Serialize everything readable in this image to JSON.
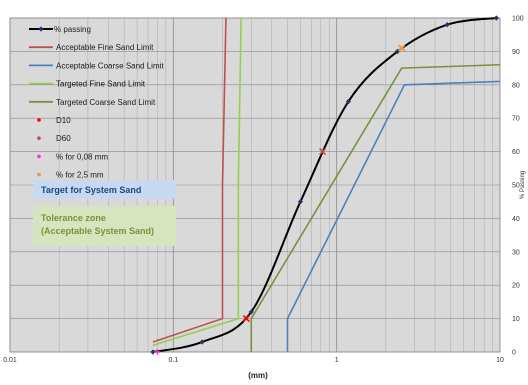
{
  "chart_data": {
    "type": "line",
    "x_scale": "log",
    "xlim": [
      0.01,
      10
    ],
    "ylim": [
      0,
      100
    ],
    "xlabel": "(mm)",
    "ylabel": "% Passing",
    "x_ticks": [
      {
        "value": 0.01,
        "label": "0.01"
      },
      {
        "value": 0.1,
        "label": "0.1"
      },
      {
        "value": 1,
        "label": "1"
      },
      {
        "value": 10,
        "label": "10"
      }
    ],
    "y_ticks": [
      0,
      10,
      20,
      30,
      40,
      50,
      60,
      70,
      80,
      90,
      100
    ],
    "grid": true,
    "legend_position": "top-left",
    "series": [
      {
        "name": "% passing",
        "color": "#000000",
        "marker": "diamond",
        "x": [
          0.075,
          0.15,
          0.3,
          0.6,
          1.18,
          2.36,
          4.75,
          9.5
        ],
        "y": [
          0,
          3,
          12,
          45,
          75,
          90,
          98,
          100
        ]
      },
      {
        "name": "Acceptable Fine Sand Limit",
        "color": "#c0504d",
        "x": [
          0.075,
          0.2,
          0.2,
          0.21
        ],
        "y": [
          3,
          10,
          50,
          100
        ]
      },
      {
        "name": "Acceptable Coarse Sand Limit",
        "color": "#4f81bd",
        "x": [
          0.5,
          0.5,
          2.6,
          10
        ],
        "y": [
          0,
          10,
          80,
          81
        ]
      },
      {
        "name": "Targeted Fine Sand Limit",
        "color": "#92d050",
        "x": [
          0.075,
          0.25,
          0.25,
          0.26
        ],
        "y": [
          2,
          10,
          50,
          100
        ]
      },
      {
        "name": "Targeted Coarse Sand Limit",
        "color": "#77933c",
        "x": [
          0.3,
          0.3,
          2.5,
          10
        ],
        "y": [
          0,
          10,
          85,
          86
        ]
      }
    ],
    "points": [
      {
        "name": "D10",
        "color": "#ff0000",
        "x": [
          0.28
        ],
        "y": [
          10
        ]
      },
      {
        "name": "D60",
        "color": "#c0504d",
        "x": [
          0.82
        ],
        "y": [
          60
        ]
      },
      {
        "name": "% for 0,08 mm",
        "color": "#ff33cc",
        "x": [
          0.08
        ],
        "y": [
          0
        ]
      },
      {
        "name": "% for 2,5 mm",
        "color": "#f79646",
        "x": [
          2.5
        ],
        "y": [
          91
        ]
      }
    ],
    "annotations": [
      {
        "text": "Target for System Sand",
        "color": "#1f497d",
        "box": "#c6d9f1"
      },
      {
        "text": "Tolerance zone\n(Acceptable System Sand)",
        "color": "#77933c",
        "box": "#d7e4bd"
      }
    ]
  }
}
